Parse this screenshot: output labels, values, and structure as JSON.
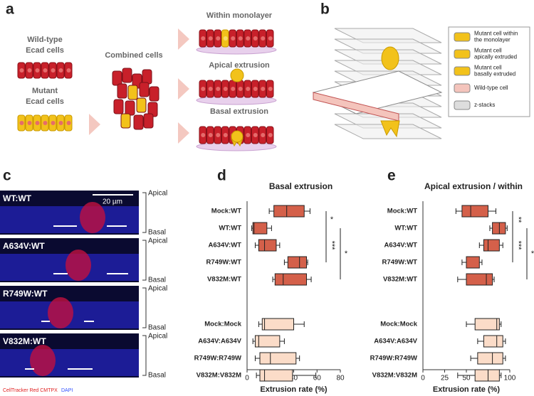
{
  "panel_a": {
    "label": "a",
    "wild_type": [
      "Wild-type",
      "Ecad cells"
    ],
    "mutant": [
      "Mutant",
      "Ecad cells"
    ],
    "combined": "Combined cells",
    "outcomes": [
      "Within monolayer",
      "Apical extrusion",
      "Basal extrusion"
    ]
  },
  "panel_b": {
    "label": "b",
    "legend": [
      [
        "Mutant cell within",
        "the monolayer"
      ],
      [
        "Mutant cell",
        "apically extruded"
      ],
      [
        "Mutant cell",
        "basally extruded"
      ],
      [
        "Wild-type cell"
      ],
      [
        "z-stacks"
      ]
    ]
  },
  "panel_c": {
    "label": "c",
    "scale": "20 µm",
    "images": [
      "WT:WT",
      "A634V:WT",
      "R749W:WT",
      "V832M:WT"
    ],
    "apical": "Apical",
    "basal": "Basal",
    "stain_red": "CellTracker Red CMTPX",
    "stain_blue": "DAPI"
  },
  "chart_data": [
    {
      "type": "box",
      "panel": "d",
      "title": "Basal extrusion",
      "x_label": "Extrusion rate (%)",
      "categories": [
        "Mock:WT",
        "WT:WT",
        "A634V:WT",
        "R749W:WT",
        "V832M:WT",
        "Mock:Mock",
        "A634V:A634V",
        "R749W:R749W",
        "V832M:V832M"
      ],
      "stats": {
        "min": [
          19,
          4,
          7,
          32,
          22,
          10,
          5,
          7,
          8
        ],
        "q1": [
          23,
          5,
          10,
          35,
          24,
          13,
          7,
          11,
          11
        ],
        "median": [
          34,
          6,
          15,
          45,
          31,
          15,
          10,
          20,
          15
        ],
        "q3": [
          49,
          17,
          25,
          51,
          51,
          40,
          28,
          42,
          39
        ],
        "max": [
          54,
          21,
          28,
          52,
          55,
          49,
          32,
          45,
          59
        ]
      },
      "colors": [
        "#d4604a",
        "#d4604a",
        "#d4604a",
        "#d4604a",
        "#d4604a",
        "#fbdcc8",
        "#fbdcc8",
        "#fbdcc8",
        "#fbdcc8"
      ],
      "xlim": [
        0,
        80
      ],
      "xticks": [
        0,
        20,
        40,
        60,
        80
      ],
      "annotations": [
        {
          "text": "*",
          "from": 0,
          "to": 1
        },
        {
          "text": "***",
          "from": 1,
          "to": 3
        },
        {
          "text": "*",
          "from": 1,
          "to": 4
        }
      ]
    },
    {
      "type": "box",
      "panel": "e",
      "title": "Apical extrusion / within",
      "x_label": "Extrusion rate (%)",
      "categories": [
        "Mock:WT",
        "WT:WT",
        "A634V:WT",
        "R749W:WT",
        "V832M:WT",
        "Mock:Mock",
        "A634V:A634V",
        "R749W:R749W",
        "V832M:V832M"
      ],
      "stats": {
        "min": [
          38,
          77,
          65,
          45,
          40,
          50,
          63,
          55,
          40
        ],
        "q1": [
          45,
          80,
          70,
          50,
          50,
          60,
          70,
          63,
          60
        ],
        "median": [
          55,
          88,
          75,
          50,
          73,
          85,
          85,
          80,
          75
        ],
        "q3": [
          75,
          95,
          88,
          65,
          80,
          88,
          92,
          92,
          88
        ],
        "max": [
          84,
          97,
          92,
          68,
          82,
          90,
          95,
          95,
          90
        ]
      },
      "colors": [
        "#d4604a",
        "#d4604a",
        "#d4604a",
        "#d4604a",
        "#d4604a",
        "#fbdcc8",
        "#fbdcc8",
        "#fbdcc8",
        "#fbdcc8"
      ],
      "xlim": [
        0,
        100
      ],
      "xticks": [
        0,
        25,
        50,
        75,
        100
      ],
      "annotations": [
        {
          "text": "**",
          "from": 0,
          "to": 1
        },
        {
          "text": "***",
          "from": 1,
          "to": 3
        },
        {
          "text": "*",
          "from": 1,
          "to": 4
        }
      ]
    }
  ]
}
